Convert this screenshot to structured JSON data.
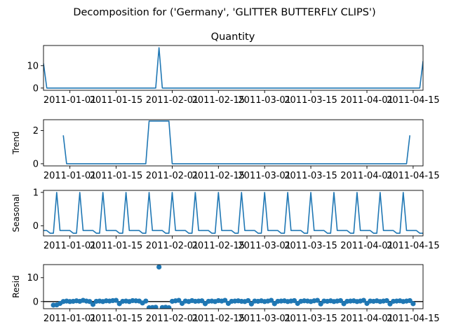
{
  "suptitle": "Decomposition for ('Germany', 'GLITTER BUTTERFLY CLIPS')",
  "colors": {
    "line": "#1f77b4",
    "axes": "#000000",
    "zero_line": "#000000"
  },
  "x_axis": {
    "start": "2010-12-24",
    "end": "2011-04-18",
    "tick_dates": [
      "2011-01-01",
      "2011-01-15",
      "2011-02-01",
      "2011-02-15",
      "2011-03-01",
      "2011-03-15",
      "2011-04-01",
      "2011-04-15"
    ],
    "tick_labels": [
      "2011-01-01",
      "2011-01-15",
      "2011-02-01",
      "2011-02-15",
      "2011-03-01",
      "2011-03-15",
      "2011-04-01",
      "2011-04-15"
    ]
  },
  "chart_data": [
    {
      "type": "line",
      "title": "Quantity",
      "ylabel": "",
      "ylim": [
        -1,
        19
      ],
      "yticks": [
        0,
        10
      ],
      "series": [
        {
          "points": [
            [
              "2010-12-24",
              11
            ],
            [
              "2010-12-25",
              0
            ],
            [
              "2011-01-27",
              0
            ],
            [
              "2011-01-28",
              18
            ],
            [
              "2011-01-29",
              0
            ],
            [
              "2011-04-17",
              0
            ],
            [
              "2011-04-18",
              12
            ]
          ]
        }
      ]
    },
    {
      "type": "line",
      "title": "",
      "ylabel": "Trend",
      "ylim": [
        -0.13,
        2.65
      ],
      "yticks": [
        0,
        2
      ],
      "series": [
        {
          "points": [
            [
              "2010-12-30",
              1.71
            ],
            [
              "2010-12-31",
              0
            ],
            [
              "2011-01-24",
              0
            ],
            [
              "2011-01-25",
              2.57
            ],
            [
              "2011-01-31",
              2.57
            ],
            [
              "2011-02-01",
              0
            ],
            [
              "2011-04-13",
              0
            ],
            [
              "2011-04-14",
              1.71
            ]
          ]
        }
      ]
    },
    {
      "type": "line",
      "title": "",
      "ylabel": "Seasonal",
      "ylim": [
        -0.3,
        1.06
      ],
      "yticks": [
        0,
        1
      ],
      "pattern": {
        "start": "2010-12-24",
        "end": "2011-04-18",
        "period_days": 7,
        "cycle_values": [
          -0.14,
          -0.14,
          -0.22,
          -0.22,
          1.0,
          -0.14,
          -0.14
        ],
        "cycle_note": ""
      }
    },
    {
      "type": "scatter",
      "title": "",
      "ylabel": "Resid",
      "ylim": [
        -3,
        15.5
      ],
      "yticks": [
        0,
        10
      ],
      "zero_line": true,
      "series": [
        {
          "outlier": [
            "2011-01-28",
            14.5
          ],
          "points": [
            [
              "2010-12-27",
              -1.5
            ],
            [
              "2010-12-28",
              -1.4
            ],
            [
              "2010-12-29",
              -0.8
            ],
            [
              "2010-12-30",
              0
            ],
            [
              "2010-12-31",
              0.2
            ],
            [
              "2011-01-01",
              0
            ],
            [
              "2011-01-02",
              0.1
            ],
            [
              "2011-01-03",
              0.3
            ],
            [
              "2011-01-04",
              0.1
            ],
            [
              "2011-01-05",
              0.5
            ],
            [
              "2011-01-06",
              0.2
            ],
            [
              "2011-01-07",
              0
            ],
            [
              "2011-01-08",
              -1.2
            ],
            [
              "2011-01-09",
              0.1
            ],
            [
              "2011-01-10",
              0.2
            ],
            [
              "2011-01-11",
              0
            ],
            [
              "2011-01-12",
              0.3
            ],
            [
              "2011-01-13",
              0.2
            ],
            [
              "2011-01-14",
              0.4
            ],
            [
              "2011-01-15",
              0.5
            ],
            [
              "2011-01-16",
              -0.9
            ],
            [
              "2011-01-17",
              0.1
            ],
            [
              "2011-01-18",
              0.2
            ],
            [
              "2011-01-19",
              0
            ],
            [
              "2011-01-20",
              0.4
            ],
            [
              "2011-01-21",
              0.3
            ],
            [
              "2011-01-22",
              0.2
            ],
            [
              "2011-01-23",
              -0.6
            ],
            [
              "2011-01-24",
              0.2
            ],
            [
              "2011-01-25",
              -2.6
            ],
            [
              "2011-01-26",
              -2.5
            ],
            [
              "2011-01-27",
              -2.4
            ],
            [
              "2011-01-29",
              -2.5
            ],
            [
              "2011-01-30",
              -2.4
            ],
            [
              "2011-01-31",
              -2.6
            ],
            [
              "2011-02-01",
              0.1
            ],
            [
              "2011-02-02",
              0.3
            ],
            [
              "2011-02-03",
              0.5
            ],
            [
              "2011-02-04",
              -0.8
            ],
            [
              "2011-02-05",
              0.2
            ],
            [
              "2011-02-06",
              0
            ],
            [
              "2011-02-07",
              0.4
            ],
            [
              "2011-02-08",
              0.1
            ],
            [
              "2011-02-09",
              0.2
            ],
            [
              "2011-02-10",
              0.3
            ],
            [
              "2011-02-11",
              -0.9
            ],
            [
              "2011-02-12",
              0.1
            ],
            [
              "2011-02-13",
              0.2
            ],
            [
              "2011-02-14",
              0
            ],
            [
              "2011-02-15",
              0.4
            ],
            [
              "2011-02-16",
              0.2
            ],
            [
              "2011-02-17",
              0.5
            ],
            [
              "2011-02-18",
              -0.8
            ],
            [
              "2011-02-19",
              0.1
            ],
            [
              "2011-02-20",
              0.2
            ],
            [
              "2011-02-21",
              0.3
            ],
            [
              "2011-02-22",
              0.1
            ],
            [
              "2011-02-23",
              0
            ],
            [
              "2011-02-24",
              0.4
            ],
            [
              "2011-02-25",
              -1.0
            ],
            [
              "2011-02-26",
              0.2
            ],
            [
              "2011-02-27",
              0.1
            ],
            [
              "2011-02-28",
              0.3
            ],
            [
              "2011-03-01",
              0
            ],
            [
              "2011-03-02",
              0.2
            ],
            [
              "2011-03-03",
              0.5
            ],
            [
              "2011-03-04",
              -0.9
            ],
            [
              "2011-03-05",
              0.1
            ],
            [
              "2011-03-06",
              0.2
            ],
            [
              "2011-03-07",
              0.3
            ],
            [
              "2011-03-08",
              0
            ],
            [
              "2011-03-09",
              0.2
            ],
            [
              "2011-03-10",
              0.4
            ],
            [
              "2011-03-11",
              -0.8
            ],
            [
              "2011-03-12",
              0.1
            ],
            [
              "2011-03-13",
              0.3
            ],
            [
              "2011-03-14",
              0.2
            ],
            [
              "2011-03-15",
              0
            ],
            [
              "2011-03-16",
              0.3
            ],
            [
              "2011-03-17",
              0.5
            ],
            [
              "2011-03-18",
              -1.0
            ],
            [
              "2011-03-19",
              0.2
            ],
            [
              "2011-03-20",
              0.1
            ],
            [
              "2011-03-21",
              0.3
            ],
            [
              "2011-03-22",
              0
            ],
            [
              "2011-03-23",
              0.2
            ],
            [
              "2011-03-24",
              0.4
            ],
            [
              "2011-03-25",
              -0.9
            ],
            [
              "2011-03-26",
              0.1
            ],
            [
              "2011-03-27",
              0.2
            ],
            [
              "2011-03-28",
              0.3
            ],
            [
              "2011-03-29",
              0
            ],
            [
              "2011-03-30",
              0.2
            ],
            [
              "2011-03-31",
              0.5
            ],
            [
              "2011-04-01",
              -0.8
            ],
            [
              "2011-04-02",
              0.2
            ],
            [
              "2011-04-03",
              0.1
            ],
            [
              "2011-04-04",
              0.3
            ],
            [
              "2011-04-05",
              0
            ],
            [
              "2011-04-06",
              0.2
            ],
            [
              "2011-04-07",
              0.4
            ],
            [
              "2011-04-08",
              -1.0
            ],
            [
              "2011-04-09",
              0.1
            ],
            [
              "2011-04-10",
              0.2
            ],
            [
              "2011-04-11",
              0.3
            ],
            [
              "2011-04-12",
              0
            ],
            [
              "2011-04-13",
              0.2
            ],
            [
              "2011-04-14",
              0.4
            ],
            [
              "2011-04-15",
              -0.9
            ]
          ]
        }
      ]
    }
  ]
}
